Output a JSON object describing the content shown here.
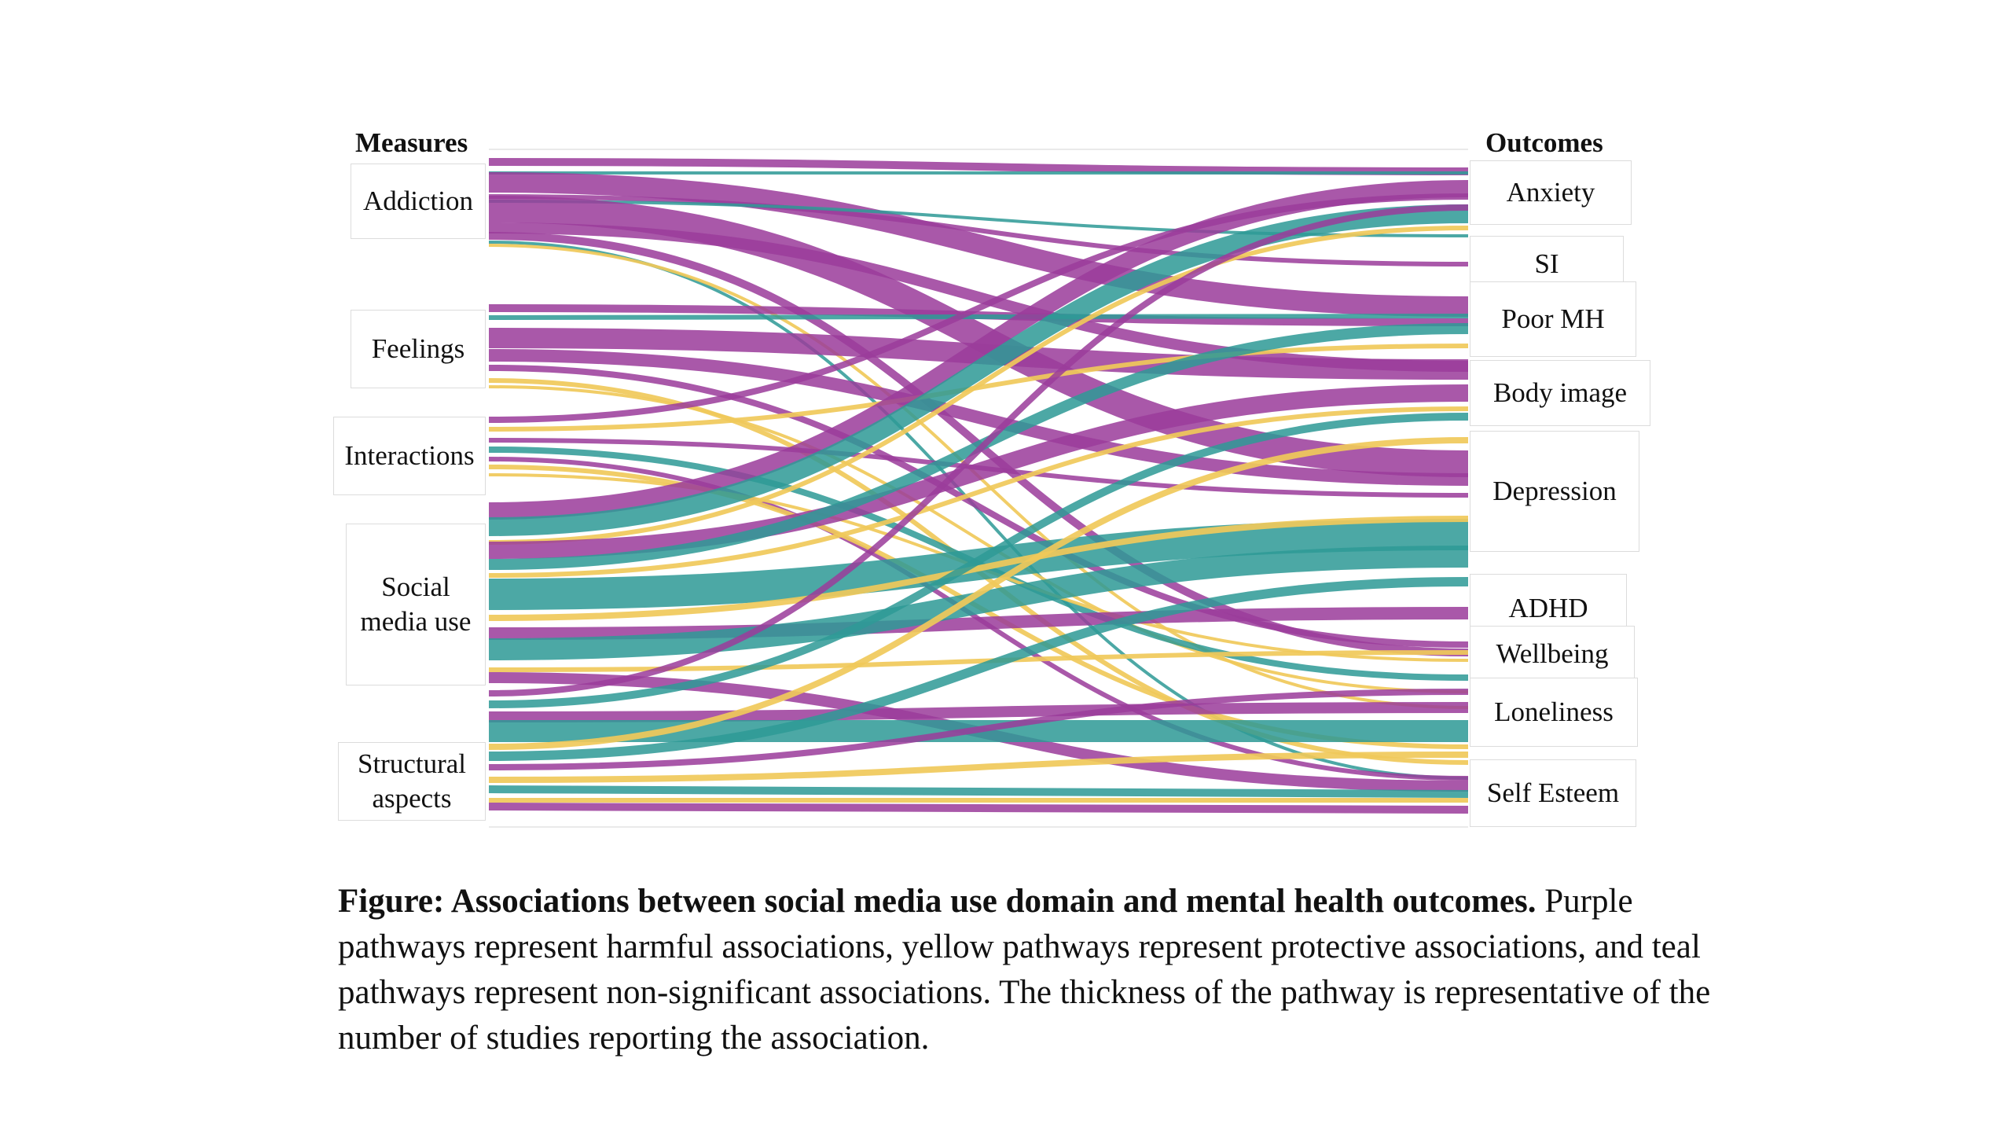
{
  "figure": {
    "measures_header": "Measures",
    "outcomes_header": "Outcomes",
    "colors": {
      "harmful": "#9b3c9b",
      "protective": "#f0c95a",
      "non_significant": "#2e9a96"
    },
    "measures": [
      {
        "id": "addiction",
        "lines": [
          "Addiction"
        ]
      },
      {
        "id": "feelings",
        "lines": [
          "Feelings"
        ]
      },
      {
        "id": "interactions",
        "lines": [
          "Interactions"
        ]
      },
      {
        "id": "social",
        "lines": [
          "Social",
          "media use"
        ]
      },
      {
        "id": "structural",
        "lines": [
          "Structural",
          "aspects"
        ]
      }
    ],
    "outcomes": [
      {
        "id": "anxiety",
        "lines": [
          "Anxiety"
        ]
      },
      {
        "id": "si",
        "lines": [
          "SI"
        ]
      },
      {
        "id": "poormh",
        "lines": [
          "Poor MH"
        ]
      },
      {
        "id": "bodyimage",
        "lines": [
          "Body image"
        ]
      },
      {
        "id": "depression",
        "lines": [
          "Depression"
        ]
      },
      {
        "id": "adhd",
        "lines": [
          "ADHD"
        ]
      },
      {
        "id": "wellbeing",
        "lines": [
          "Wellbeing"
        ]
      },
      {
        "id": "loneliness",
        "lines": [
          "Loneliness"
        ]
      },
      {
        "id": "selfesteem",
        "lines": [
          "Self Esteem"
        ]
      }
    ]
  },
  "caption": {
    "title": "Figure: Associations between social media use domain and mental health outcomes.",
    "text": " Purple pathways represent harmful associations, yellow pathways represent protective associations, and teal pathways represent non-significant associations. The thickness of the pathway is representative of the number of studies reporting the association."
  }
}
